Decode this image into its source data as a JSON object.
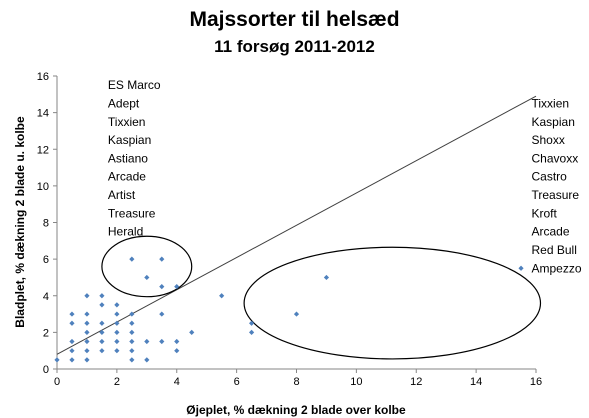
{
  "chart_data": {
    "type": "scatter",
    "title": "Majssorter til helsæd",
    "subtitle": "11 forsøg 2011-2012",
    "xlabel": "Øjeplet, % dækning 2 blade over kolbe",
    "ylabel": "Bladplet, % dækning 2 blade u. kolbe",
    "xlim": [
      0,
      16
    ],
    "ylim": [
      0,
      16
    ],
    "xticks": [
      0,
      2,
      4,
      6,
      8,
      10,
      12,
      14,
      16
    ],
    "yticks": [
      0,
      2,
      4,
      6,
      8,
      10,
      12,
      14,
      16
    ],
    "grid": false,
    "point_color": "#4f81bd",
    "points": [
      [
        0,
        0.5
      ],
      [
        0.5,
        0.5
      ],
      [
        0.5,
        1
      ],
      [
        0.5,
        1.5
      ],
      [
        0.5,
        2.5
      ],
      [
        0.5,
        3
      ],
      [
        1,
        0.5
      ],
      [
        1,
        1
      ],
      [
        1,
        1.5
      ],
      [
        1,
        2
      ],
      [
        1,
        2.5
      ],
      [
        1,
        3
      ],
      [
        1,
        4
      ],
      [
        1.5,
        1
      ],
      [
        1.5,
        1.5
      ],
      [
        1.5,
        2
      ],
      [
        1.5,
        2.5
      ],
      [
        1.5,
        3.5
      ],
      [
        1.5,
        4
      ],
      [
        2,
        1
      ],
      [
        2,
        1.5
      ],
      [
        2,
        2
      ],
      [
        2,
        2.5
      ],
      [
        2,
        3
      ],
      [
        2,
        3.5
      ],
      [
        2.5,
        0.5
      ],
      [
        2.5,
        1
      ],
      [
        2.5,
        1.5
      ],
      [
        2.5,
        2
      ],
      [
        2.5,
        2.5
      ],
      [
        2.5,
        3
      ],
      [
        2.5,
        6
      ],
      [
        3,
        0.5
      ],
      [
        3,
        1.5
      ],
      [
        3,
        5
      ],
      [
        3.5,
        1.5
      ],
      [
        3.5,
        3
      ],
      [
        3.5,
        4.5
      ],
      [
        3.5,
        6
      ],
      [
        4,
        1
      ],
      [
        4,
        1.5
      ],
      [
        4,
        4.5
      ],
      [
        4.5,
        2
      ],
      [
        5.5,
        4
      ],
      [
        6.5,
        2
      ],
      [
        6.5,
        2.5
      ],
      [
        8,
        3
      ],
      [
        9,
        5
      ],
      [
        15.5,
        5.5
      ]
    ],
    "reference_line": {
      "from": [
        0,
        0.8
      ],
      "to": [
        16,
        14.9
      ]
    },
    "ellipses": [
      {
        "cx": 3,
        "cy": 5.6,
        "rx": 1.5,
        "ry": 1.65
      },
      {
        "cx": 11.2,
        "cy": 3.6,
        "rx": 4.95,
        "ry": 3.05
      }
    ],
    "annotations": [
      {
        "x": 1.7,
        "y_start": 15.5,
        "step": 1,
        "lines": [
          "ES Marco",
          "Adept",
          "Tixxien",
          "Kaspian",
          "Astiano",
          "Arcade",
          "Artist",
          "Treasure",
          "Herald"
        ]
      },
      {
        "x": 15.85,
        "y_start": 14.5,
        "step": 1,
        "lines": [
          "Tixxien",
          "Kaspian",
          "Shoxx",
          "Chavoxx",
          "Castro",
          "Treasure",
          "Kroft",
          "Arcade",
          "Red Bull",
          "Ampezzo"
        ]
      }
    ]
  }
}
